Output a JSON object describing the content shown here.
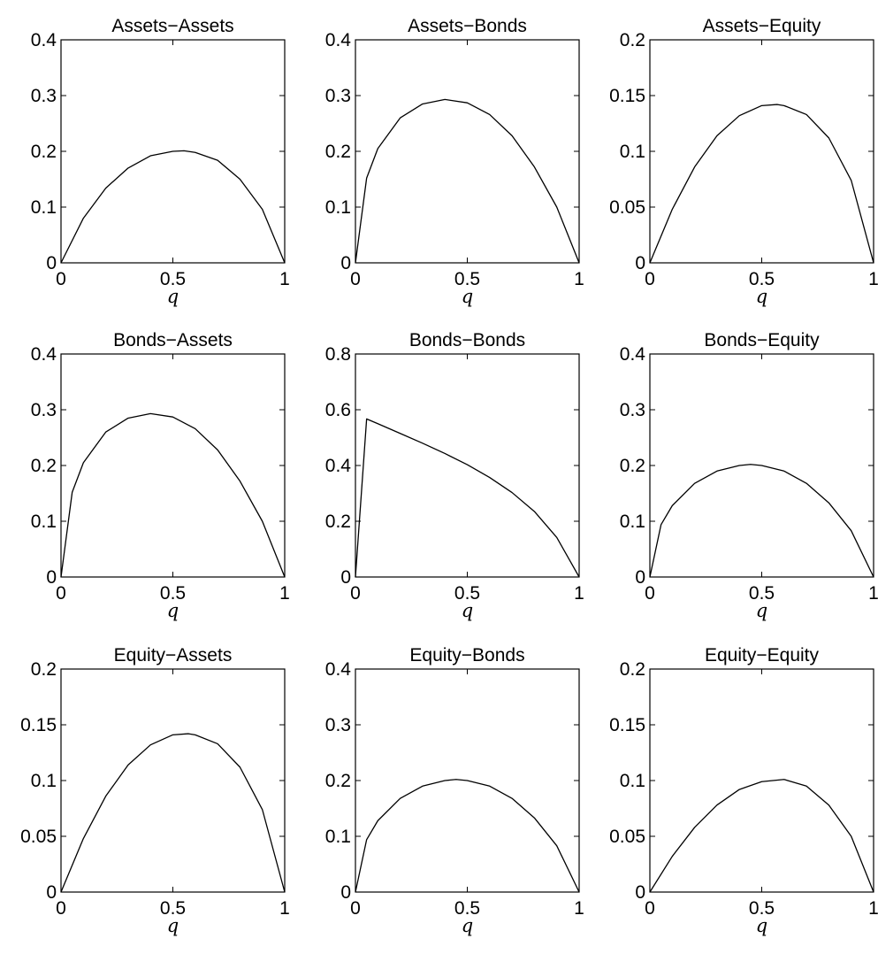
{
  "chart_data": [
    {
      "type": "line",
      "title": "Assets−Assets",
      "xlabel": "q",
      "ylabel": "",
      "xlim": [
        0,
        1
      ],
      "ylim": [
        0,
        0.4
      ],
      "xticks": [
        "0",
        "0.5",
        "1"
      ],
      "yticks": [
        "0",
        "0.1",
        "0.2",
        "0.3",
        "0.4"
      ],
      "grid": false,
      "series": [
        {
          "values": [
            [
              0,
              0
            ],
            [
              0.1,
              0.08
            ],
            [
              0.2,
              0.134
            ],
            [
              0.3,
              0.17
            ],
            [
              0.4,
              0.192
            ],
            [
              0.5,
              0.2
            ],
            [
              0.55,
              0.201
            ],
            [
              0.6,
              0.198
            ],
            [
              0.7,
              0.184
            ],
            [
              0.8,
              0.15
            ],
            [
              0.9,
              0.096
            ],
            [
              1,
              0
            ]
          ]
        }
      ]
    },
    {
      "type": "line",
      "title": "Assets−Bonds",
      "xlabel": "q",
      "ylabel": "",
      "xlim": [
        0,
        1
      ],
      "ylim": [
        0,
        0.4
      ],
      "xticks": [
        "0",
        "0.5",
        "1"
      ],
      "yticks": [
        "0",
        "0.1",
        "0.2",
        "0.3",
        "0.4"
      ],
      "grid": false,
      "series": [
        {
          "values": [
            [
              0,
              0
            ],
            [
              0.05,
              0.152
            ],
            [
              0.1,
              0.205
            ],
            [
              0.2,
              0.26
            ],
            [
              0.3,
              0.285
            ],
            [
              0.4,
              0.293
            ],
            [
              0.5,
              0.287
            ],
            [
              0.6,
              0.266
            ],
            [
              0.7,
              0.228
            ],
            [
              0.8,
              0.172
            ],
            [
              0.9,
              0.1
            ],
            [
              1,
              0
            ]
          ]
        }
      ]
    },
    {
      "type": "line",
      "title": "Assets−Equity",
      "xlabel": "q",
      "ylabel": "",
      "xlim": [
        0,
        1
      ],
      "ylim": [
        0,
        0.2
      ],
      "xticks": [
        "0",
        "0.5",
        "1"
      ],
      "yticks": [
        "0",
        "0.05",
        "0.1",
        "0.15",
        "0.2"
      ],
      "grid": false,
      "series": [
        {
          "values": [
            [
              0,
              0
            ],
            [
              0.1,
              0.048
            ],
            [
              0.2,
              0.086
            ],
            [
              0.3,
              0.114
            ],
            [
              0.4,
              0.132
            ],
            [
              0.5,
              0.141
            ],
            [
              0.57,
              0.142
            ],
            [
              0.6,
              0.141
            ],
            [
              0.7,
              0.133
            ],
            [
              0.8,
              0.112
            ],
            [
              0.9,
              0.074
            ],
            [
              1,
              0
            ]
          ]
        }
      ]
    },
    {
      "type": "line",
      "title": "Bonds−Assets",
      "xlabel": "q",
      "ylabel": "",
      "xlim": [
        0,
        1
      ],
      "ylim": [
        0,
        0.4
      ],
      "xticks": [
        "0",
        "0.5",
        "1"
      ],
      "yticks": [
        "0",
        "0.1",
        "0.2",
        "0.3",
        "0.4"
      ],
      "grid": false,
      "series": [
        {
          "values": [
            [
              0,
              0
            ],
            [
              0.05,
              0.152
            ],
            [
              0.1,
              0.205
            ],
            [
              0.2,
              0.26
            ],
            [
              0.3,
              0.285
            ],
            [
              0.4,
              0.293
            ],
            [
              0.5,
              0.287
            ],
            [
              0.6,
              0.266
            ],
            [
              0.7,
              0.228
            ],
            [
              0.8,
              0.172
            ],
            [
              0.9,
              0.1
            ],
            [
              1,
              0
            ]
          ]
        }
      ]
    },
    {
      "type": "line",
      "title": "Bonds−Bonds",
      "xlabel": "q",
      "ylabel": "",
      "xlim": [
        0,
        1
      ],
      "ylim": [
        0,
        0.8
      ],
      "xticks": [
        "0",
        "0.5",
        "1"
      ],
      "yticks": [
        "0",
        "0.2",
        "0.4",
        "0.6",
        "0.8"
      ],
      "grid": false,
      "series": [
        {
          "values": [
            [
              0,
              0
            ],
            [
              0.05,
              0.567
            ],
            [
              0.1,
              0.55
            ],
            [
              0.2,
              0.515
            ],
            [
              0.3,
              0.48
            ],
            [
              0.4,
              0.443
            ],
            [
              0.5,
              0.403
            ],
            [
              0.6,
              0.357
            ],
            [
              0.7,
              0.303
            ],
            [
              0.8,
              0.235
            ],
            [
              0.9,
              0.142
            ],
            [
              1,
              0
            ]
          ]
        }
      ]
    },
    {
      "type": "line",
      "title": "Bonds−Equity",
      "xlabel": "q",
      "ylabel": "",
      "xlim": [
        0,
        1
      ],
      "ylim": [
        0,
        0.4
      ],
      "xticks": [
        "0",
        "0.5",
        "1"
      ],
      "yticks": [
        "0",
        "0.1",
        "0.2",
        "0.3",
        "0.4"
      ],
      "grid": false,
      "series": [
        {
          "values": [
            [
              0,
              0
            ],
            [
              0.05,
              0.094
            ],
            [
              0.1,
              0.128
            ],
            [
              0.2,
              0.168
            ],
            [
              0.3,
              0.19
            ],
            [
              0.4,
              0.2
            ],
            [
              0.45,
              0.202
            ],
            [
              0.5,
              0.2
            ],
            [
              0.6,
              0.19
            ],
            [
              0.7,
              0.168
            ],
            [
              0.8,
              0.133
            ],
            [
              0.9,
              0.083
            ],
            [
              1,
              0
            ]
          ]
        }
      ]
    },
    {
      "type": "line",
      "title": "Equity−Assets",
      "xlabel": "q",
      "ylabel": "",
      "xlim": [
        0,
        1
      ],
      "ylim": [
        0,
        0.2
      ],
      "xticks": [
        "0",
        "0.5",
        "1"
      ],
      "yticks": [
        "0",
        "0.05",
        "0.1",
        "0.15",
        "0.2"
      ],
      "grid": false,
      "series": [
        {
          "values": [
            [
              0,
              0
            ],
            [
              0.1,
              0.048
            ],
            [
              0.2,
              0.086
            ],
            [
              0.3,
              0.114
            ],
            [
              0.4,
              0.132
            ],
            [
              0.5,
              0.141
            ],
            [
              0.57,
              0.142
            ],
            [
              0.6,
              0.141
            ],
            [
              0.7,
              0.133
            ],
            [
              0.8,
              0.112
            ],
            [
              0.9,
              0.074
            ],
            [
              1,
              0
            ]
          ]
        }
      ]
    },
    {
      "type": "line",
      "title": "Equity−Bonds",
      "xlabel": "q",
      "ylabel": "",
      "xlim": [
        0,
        1
      ],
      "ylim": [
        0,
        0.4
      ],
      "xticks": [
        "0",
        "0.5",
        "1"
      ],
      "yticks": [
        "0",
        "0.1",
        "0.2",
        "0.3",
        "0.4"
      ],
      "grid": false,
      "series": [
        {
          "values": [
            [
              0,
              0
            ],
            [
              0.05,
              0.094
            ],
            [
              0.1,
              0.128
            ],
            [
              0.2,
              0.168
            ],
            [
              0.3,
              0.19
            ],
            [
              0.4,
              0.2
            ],
            [
              0.45,
              0.202
            ],
            [
              0.5,
              0.2
            ],
            [
              0.6,
              0.19
            ],
            [
              0.7,
              0.168
            ],
            [
              0.8,
              0.133
            ],
            [
              0.9,
              0.083
            ],
            [
              1,
              0
            ]
          ]
        }
      ]
    },
    {
      "type": "line",
      "title": "Equity−Equity",
      "xlabel": "q",
      "ylabel": "",
      "xlim": [
        0,
        1
      ],
      "ylim": [
        0,
        0.2
      ],
      "xticks": [
        "0",
        "0.5",
        "1"
      ],
      "yticks": [
        "0",
        "0.05",
        "0.1",
        "0.15",
        "0.2"
      ],
      "grid": false,
      "series": [
        {
          "values": [
            [
              0,
              0
            ],
            [
              0.1,
              0.032
            ],
            [
              0.2,
              0.058
            ],
            [
              0.3,
              0.078
            ],
            [
              0.4,
              0.092
            ],
            [
              0.5,
              0.099
            ],
            [
              0.6,
              0.101
            ],
            [
              0.7,
              0.095
            ],
            [
              0.8,
              0.078
            ],
            [
              0.9,
              0.05
            ],
            [
              1,
              0
            ]
          ]
        }
      ]
    }
  ]
}
